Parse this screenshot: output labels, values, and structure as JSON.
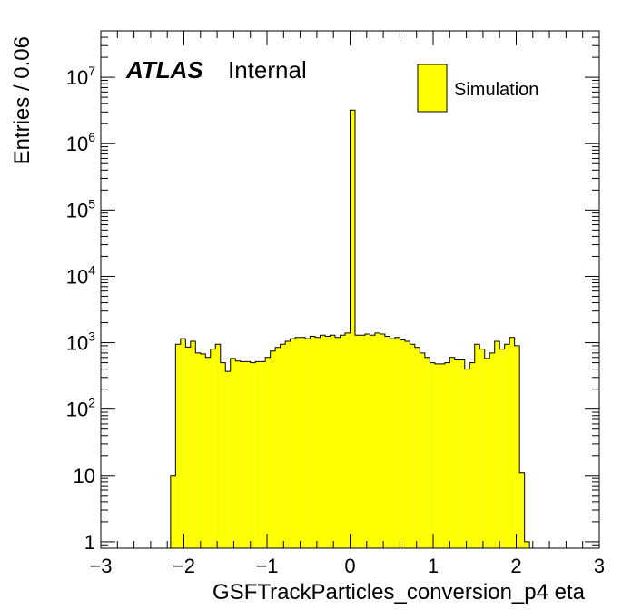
{
  "chart_data": {
    "type": "bar",
    "histogram": true,
    "x_axis": {
      "label": "GSFTrackParticles_conversion_p4 eta",
      "range": [
        -3,
        3
      ],
      "ticks": [
        -3,
        -2,
        -1,
        0,
        1,
        2,
        3
      ],
      "tick_labels": [
        "−3",
        "−2",
        "−1",
        "0",
        "1",
        "2",
        "3"
      ]
    },
    "y_axis": {
      "label": "Entries / 0.06",
      "scale": "log",
      "range": [
        0.8,
        50000000
      ],
      "ticks": [
        {
          "value": 1,
          "mantissa": "1",
          "exponent": ""
        },
        {
          "value": 10,
          "mantissa": "10",
          "exponent": ""
        },
        {
          "value": 100,
          "mantissa": "10",
          "exponent": "2"
        },
        {
          "value": 1000,
          "mantissa": "10",
          "exponent": "3"
        },
        {
          "value": 10000,
          "mantissa": "10",
          "exponent": "4"
        },
        {
          "value": 100000,
          "mantissa": "10",
          "exponent": "5"
        },
        {
          "value": 1000000,
          "mantissa": "10",
          "exponent": "6"
        },
        {
          "value": 10000000,
          "mantissa": "10",
          "exponent": "7"
        }
      ]
    },
    "bin_width": 0.06,
    "series": [
      {
        "name": "Simulation",
        "color": "#ffff00",
        "bins": [
          {
            "x_low": -2.16,
            "x_high": -2.1,
            "y": 10
          },
          {
            "x_low": -2.1,
            "x_high": -2.04,
            "y": 950
          },
          {
            "x_low": -2.04,
            "x_high": -1.98,
            "y": 1150
          },
          {
            "x_low": -1.98,
            "x_high": -1.92,
            "y": 860
          },
          {
            "x_low": -1.92,
            "x_high": -1.86,
            "y": 1050
          },
          {
            "x_low": -1.86,
            "x_high": -1.8,
            "y": 700
          },
          {
            "x_low": -1.8,
            "x_high": -1.74,
            "y": 680
          },
          {
            "x_low": -1.74,
            "x_high": -1.68,
            "y": 600
          },
          {
            "x_low": -1.68,
            "x_high": -1.62,
            "y": 800
          },
          {
            "x_low": -1.62,
            "x_high": -1.56,
            "y": 950
          },
          {
            "x_low": -1.56,
            "x_high": -1.5,
            "y": 500
          },
          {
            "x_low": -1.5,
            "x_high": -1.44,
            "y": 370
          },
          {
            "x_low": -1.44,
            "x_high": -1.38,
            "y": 580
          },
          {
            "x_low": -1.38,
            "x_high": -1.32,
            "y": 530
          },
          {
            "x_low": -1.32,
            "x_high": -1.26,
            "y": 520
          },
          {
            "x_low": -1.26,
            "x_high": -1.2,
            "y": 520
          },
          {
            "x_low": -1.2,
            "x_high": -1.14,
            "y": 500
          },
          {
            "x_low": -1.14,
            "x_high": -1.08,
            "y": 520
          },
          {
            "x_low": -1.08,
            "x_high": -1.02,
            "y": 520
          },
          {
            "x_low": -1.02,
            "x_high": -0.96,
            "y": 600
          },
          {
            "x_low": -0.96,
            "x_high": -0.9,
            "y": 750
          },
          {
            "x_low": -0.9,
            "x_high": -0.84,
            "y": 850
          },
          {
            "x_low": -0.84,
            "x_high": -0.78,
            "y": 950
          },
          {
            "x_low": -0.78,
            "x_high": -0.72,
            "y": 1050
          },
          {
            "x_low": -0.72,
            "x_high": -0.66,
            "y": 1150
          },
          {
            "x_low": -0.66,
            "x_high": -0.6,
            "y": 1200
          },
          {
            "x_low": -0.6,
            "x_high": -0.54,
            "y": 1200
          },
          {
            "x_low": -0.54,
            "x_high": -0.48,
            "y": 1150
          },
          {
            "x_low": -0.48,
            "x_high": -0.42,
            "y": 1250
          },
          {
            "x_low": -0.42,
            "x_high": -0.36,
            "y": 1200
          },
          {
            "x_low": -0.36,
            "x_high": -0.3,
            "y": 1300
          },
          {
            "x_low": -0.3,
            "x_high": -0.24,
            "y": 1250
          },
          {
            "x_low": -0.24,
            "x_high": -0.18,
            "y": 1300
          },
          {
            "x_low": -0.18,
            "x_high": -0.12,
            "y": 1200
          },
          {
            "x_low": -0.12,
            "x_high": -0.06,
            "y": 1300
          },
          {
            "x_low": -0.06,
            "x_high": 0.0,
            "y": 1400
          },
          {
            "x_low": 0.0,
            "x_high": 0.06,
            "y": 3200000
          },
          {
            "x_low": 0.06,
            "x_high": 0.12,
            "y": 1300
          },
          {
            "x_low": 0.12,
            "x_high": 0.18,
            "y": 1300
          },
          {
            "x_low": 0.18,
            "x_high": 0.24,
            "y": 1350
          },
          {
            "x_low": 0.24,
            "x_high": 0.3,
            "y": 1300
          },
          {
            "x_low": 0.3,
            "x_high": 0.36,
            "y": 1400
          },
          {
            "x_low": 0.36,
            "x_high": 0.42,
            "y": 1350
          },
          {
            "x_low": 0.42,
            "x_high": 0.48,
            "y": 1250
          },
          {
            "x_low": 0.48,
            "x_high": 0.54,
            "y": 1150
          },
          {
            "x_low": 0.54,
            "x_high": 0.6,
            "y": 1200
          },
          {
            "x_low": 0.6,
            "x_high": 0.66,
            "y": 1100
          },
          {
            "x_low": 0.66,
            "x_high": 0.72,
            "y": 1050
          },
          {
            "x_low": 0.72,
            "x_high": 0.78,
            "y": 950
          },
          {
            "x_low": 0.78,
            "x_high": 0.84,
            "y": 850
          },
          {
            "x_low": 0.84,
            "x_high": 0.9,
            "y": 700
          },
          {
            "x_low": 0.9,
            "x_high": 0.96,
            "y": 600
          },
          {
            "x_low": 0.96,
            "x_high": 1.02,
            "y": 500
          },
          {
            "x_low": 1.02,
            "x_high": 1.08,
            "y": 480
          },
          {
            "x_low": 1.08,
            "x_high": 1.14,
            "y": 480
          },
          {
            "x_low": 1.14,
            "x_high": 1.2,
            "y": 500
          },
          {
            "x_low": 1.2,
            "x_high": 1.26,
            "y": 600
          },
          {
            "x_low": 1.26,
            "x_high": 1.32,
            "y": 550
          },
          {
            "x_low": 1.32,
            "x_high": 1.38,
            "y": 550
          },
          {
            "x_low": 1.38,
            "x_high": 1.44,
            "y": 400
          },
          {
            "x_low": 1.44,
            "x_high": 1.5,
            "y": 500
          },
          {
            "x_low": 1.5,
            "x_high": 1.56,
            "y": 950
          },
          {
            "x_low": 1.56,
            "x_high": 1.62,
            "y": 800
          },
          {
            "x_low": 1.62,
            "x_high": 1.68,
            "y": 580
          },
          {
            "x_low": 1.68,
            "x_high": 1.74,
            "y": 700
          },
          {
            "x_low": 1.74,
            "x_high": 1.8,
            "y": 1050
          },
          {
            "x_low": 1.8,
            "x_high": 1.86,
            "y": 800
          },
          {
            "x_low": 1.86,
            "x_high": 1.92,
            "y": 950
          },
          {
            "x_low": 1.92,
            "x_high": 1.98,
            "y": 1200
          },
          {
            "x_low": 1.98,
            "x_high": 2.04,
            "y": 900
          },
          {
            "x_low": 2.04,
            "x_high": 2.1,
            "y": 11
          },
          {
            "x_low": 2.1,
            "x_high": 2.16,
            "y": 1
          }
        ]
      }
    ],
    "legend": {
      "placement": "top-right",
      "entries": [
        "Simulation"
      ]
    },
    "annotations": {
      "atlas": "ATLAS",
      "status": "Internal"
    },
    "grid": false
  }
}
